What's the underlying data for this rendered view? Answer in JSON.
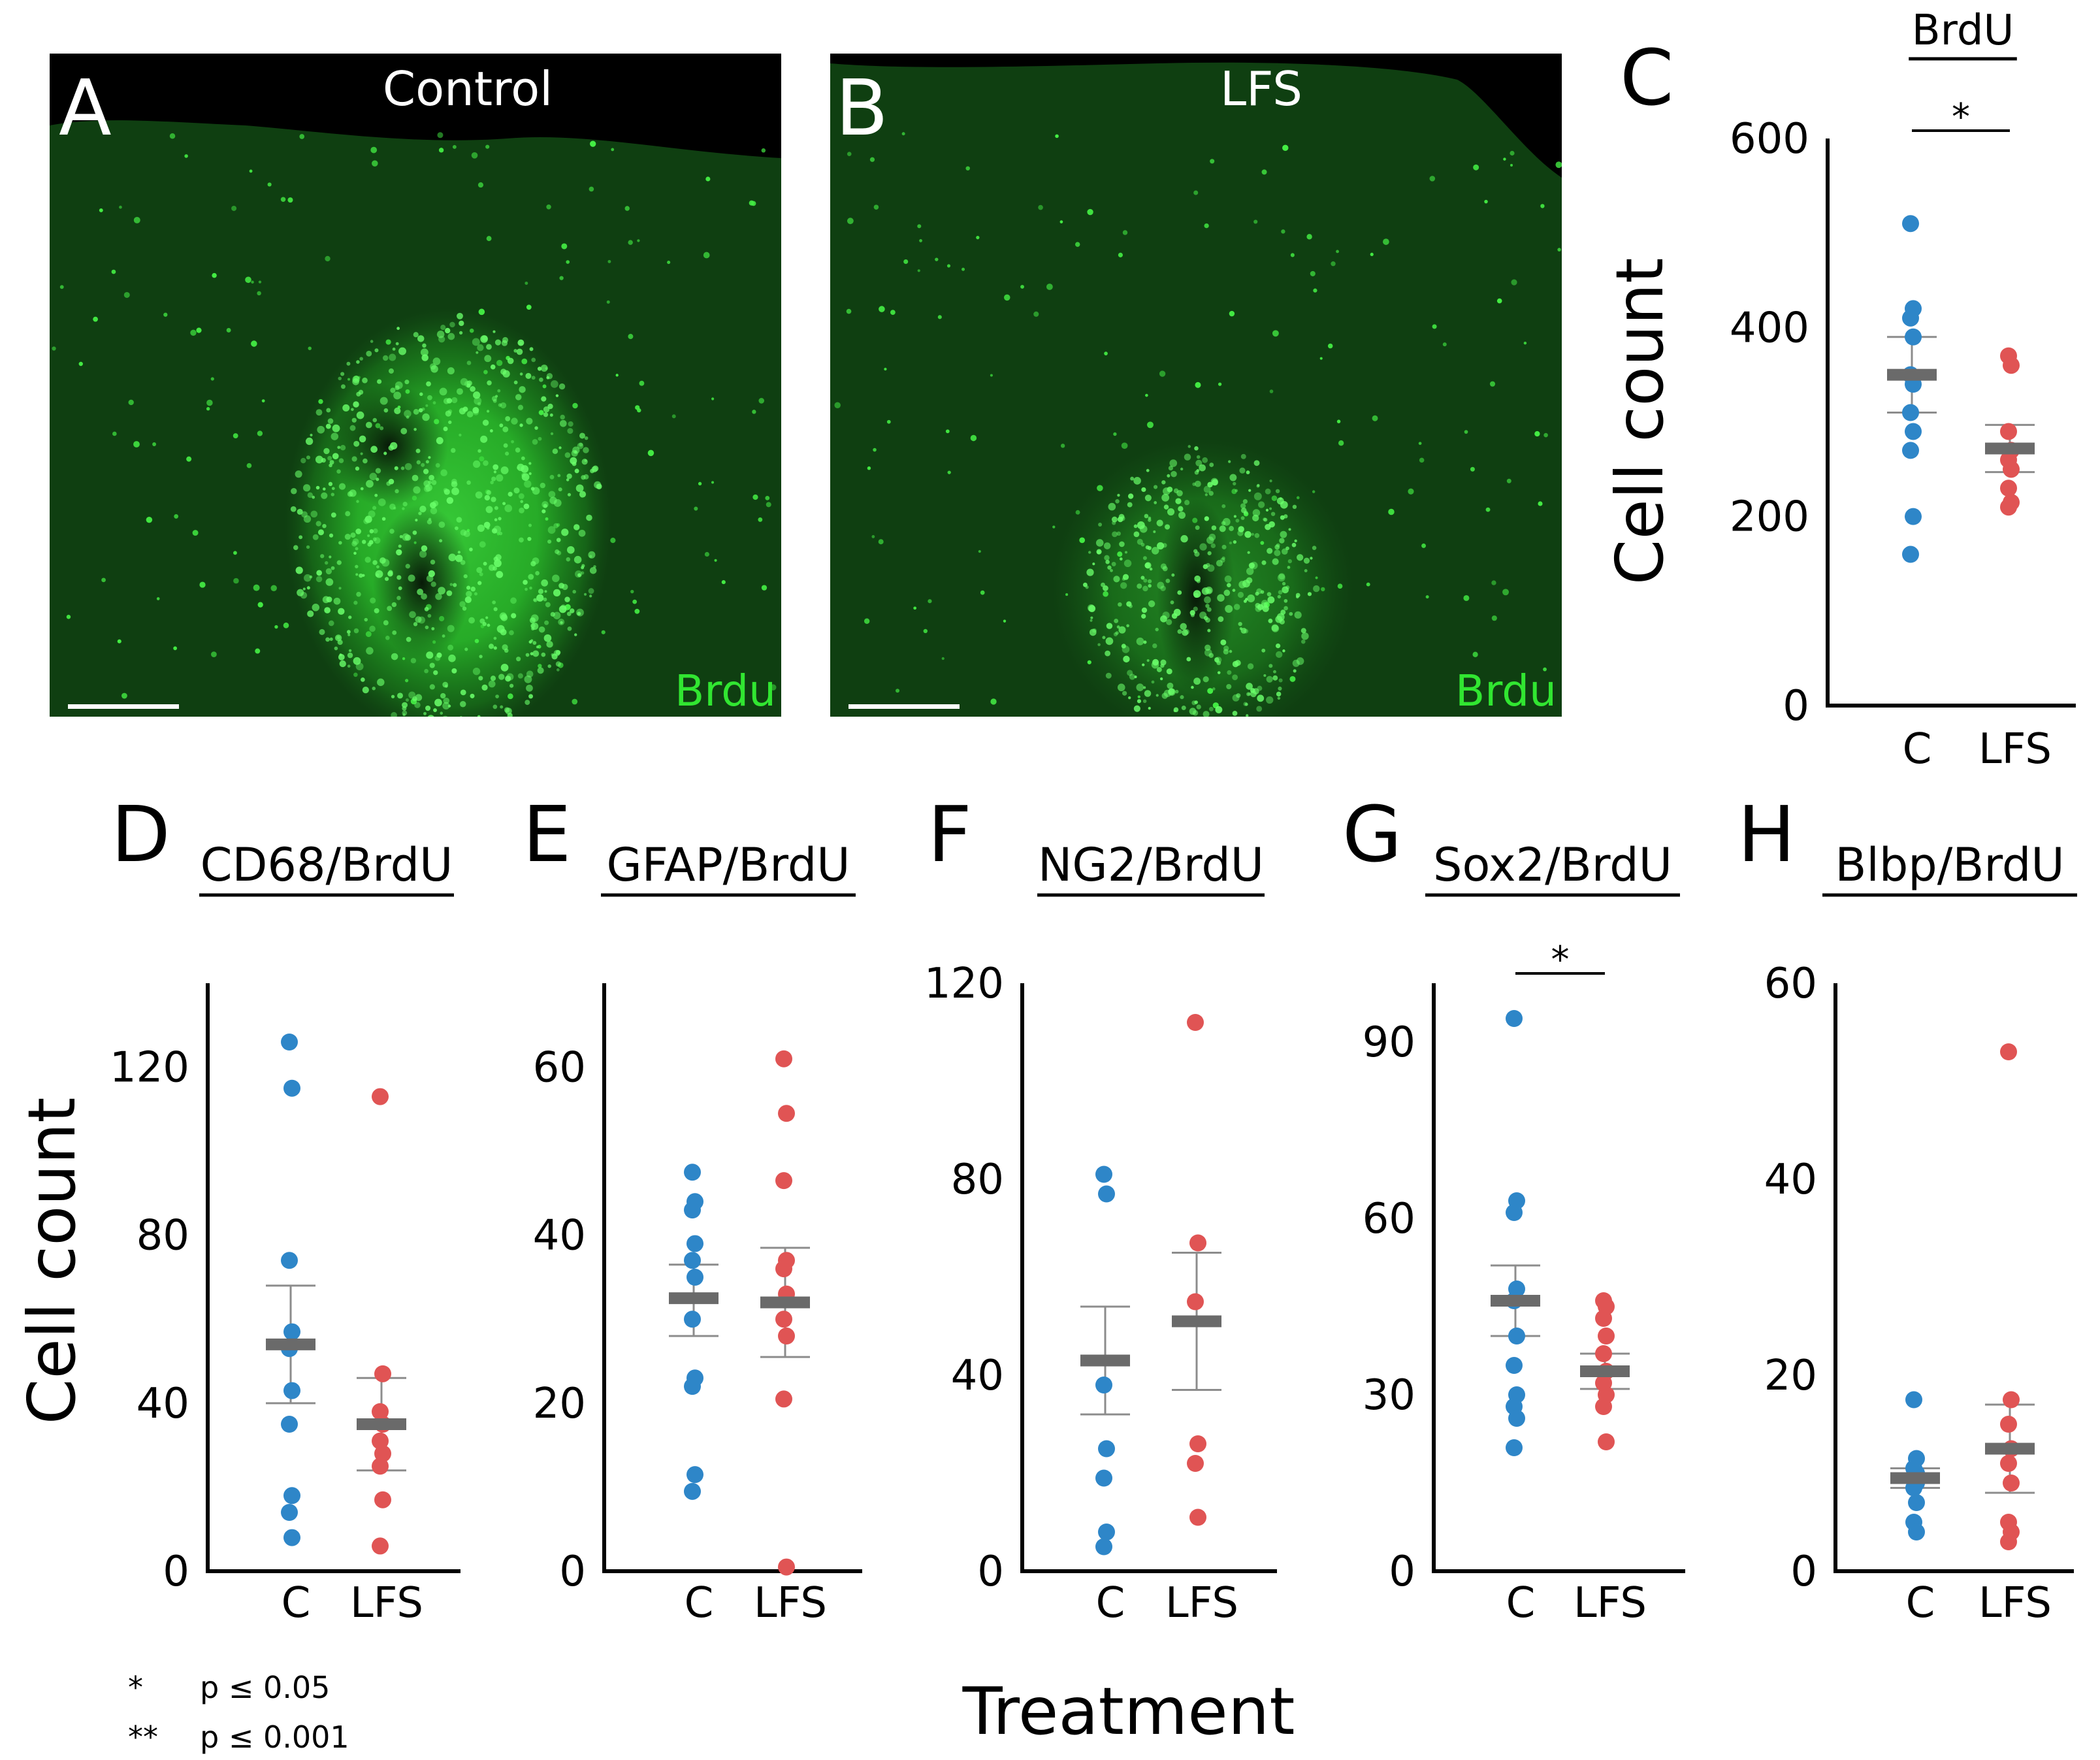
{
  "colors": {
    "control": "#2e86c8",
    "lfs": "#e05454",
    "mean_bar": "#6a6a6a",
    "sem_bar": "#8c8c8c",
    "stain": "#31e631"
  },
  "micrographs": [
    {
      "letter": "A",
      "title": "Control",
      "stain": "Brdu"
    },
    {
      "letter": "B",
      "title": "LFS",
      "stain": "Brdu"
    }
  ],
  "shared_ylabel": "Cell count",
  "shared_xlabel": "Treatment",
  "legend": [
    {
      "symbol": "*",
      "text": "p ≤ 0.05"
    },
    {
      "symbol": "**",
      "text": "p ≤ 0.001"
    }
  ],
  "chart_data": [
    {
      "panel": "C",
      "type": "scatter",
      "title": "BrdU",
      "ylabel": "Cell count",
      "xlabel": "",
      "categories": [
        "C",
        "LFS"
      ],
      "ylim": [
        0,
        600
      ],
      "yticks": [
        "0",
        "200",
        "400",
        "600"
      ],
      "significance": "*",
      "series": [
        {
          "name": "C",
          "values": [
            510,
            420,
            410,
            390,
            350,
            340,
            310,
            290,
            270,
            200,
            160
          ],
          "mean": 350,
          "sem_upper": 390,
          "sem_lower": 310
        },
        {
          "name": "LFS",
          "values": [
            370,
            360,
            290,
            270,
            260,
            250,
            230,
            215,
            210
          ],
          "mean": 272,
          "sem_upper": 297,
          "sem_lower": 247
        }
      ]
    },
    {
      "panel": "D",
      "type": "scatter",
      "title": "CD68/BrdU",
      "ylabel": "Cell count",
      "xlabel": "",
      "categories": [
        "C",
        "LFS"
      ],
      "ylim": [
        0,
        140
      ],
      "yticks": [
        "0",
        "40",
        "80",
        "120"
      ],
      "significance": "",
      "series": [
        {
          "name": "C",
          "values": [
            126,
            115,
            74,
            57,
            53,
            43,
            35,
            18,
            14,
            8
          ],
          "mean": 54,
          "sem_upper": 68,
          "sem_lower": 40
        },
        {
          "name": "LFS",
          "values": [
            113,
            47,
            38,
            35,
            31,
            28,
            25,
            17,
            6
          ],
          "mean": 35,
          "sem_upper": 46,
          "sem_lower": 24
        }
      ]
    },
    {
      "panel": "E",
      "type": "scatter",
      "title": "GFAP/BrdU",
      "ylabel": "",
      "xlabel": "",
      "categories": [
        "C",
        "LFS"
      ],
      "ylim": [
        0,
        70
      ],
      "yticks": [
        "0",
        "20",
        "40",
        "60"
      ],
      "significance": "",
      "series": [
        {
          "name": "C",
          "values": [
            47.5,
            44,
            43,
            39,
            37,
            35,
            30,
            23,
            22,
            11.5,
            9.5
          ],
          "mean": 32.5,
          "sem_upper": 36.5,
          "sem_lower": 28
        },
        {
          "name": "LFS",
          "values": [
            61,
            54.5,
            46.5,
            37,
            36,
            33,
            30,
            28,
            20.5,
            0.5
          ],
          "mean": 32,
          "sem_upper": 38.5,
          "sem_lower": 25.5
        }
      ]
    },
    {
      "panel": "F",
      "type": "scatter",
      "title": "NG2/BrdU",
      "ylabel": "",
      "xlabel": "",
      "categories": [
        "C",
        "LFS"
      ],
      "ylim": [
        0,
        120
      ],
      "yticks": [
        "0",
        "40",
        "80",
        "120"
      ],
      "significance": "",
      "series": [
        {
          "name": "C",
          "values": [
            81,
            77,
            38,
            25,
            19,
            8,
            5
          ],
          "mean": 43,
          "sem_upper": 54,
          "sem_lower": 32
        },
        {
          "name": "LFS",
          "values": [
            112,
            67,
            55,
            26,
            22,
            11
          ],
          "mean": 51,
          "sem_upper": 65,
          "sem_lower": 37
        }
      ]
    },
    {
      "panel": "G",
      "type": "scatter",
      "title": "Sox2/BrdU",
      "ylabel": "",
      "xlabel": "",
      "categories": [
        "C",
        "LFS"
      ],
      "ylim": [
        0,
        100
      ],
      "yticks": [
        "0",
        "30",
        "60",
        "90"
      ],
      "significance": "*",
      "series": [
        {
          "name": "C",
          "values": [
            94,
            63,
            61,
            48,
            46,
            40,
            35,
            30,
            28,
            26,
            21
          ],
          "mean": 46,
          "sem_upper": 52,
          "sem_lower": 40
        },
        {
          "name": "LFS",
          "values": [
            46,
            45,
            43,
            40,
            37,
            34,
            32,
            30,
            28,
            22
          ],
          "mean": 34,
          "sem_upper": 37,
          "sem_lower": 31
        }
      ]
    },
    {
      "panel": "H",
      "type": "scatter",
      "title": "Blbp/BrdU",
      "ylabel": "",
      "xlabel": "",
      "categories": [
        "C",
        "LFS"
      ],
      "ylim": [
        0,
        60
      ],
      "yticks": [
        "0",
        "20",
        "40",
        "60"
      ],
      "significance": "",
      "series": [
        {
          "name": "C",
          "values": [
            17.5,
            11.5,
            10.5,
            10,
            9.5,
            9,
            8.5,
            7,
            5,
            4
          ],
          "mean": 9.5,
          "sem_upper": 10.5,
          "sem_lower": 8.5
        },
        {
          "name": "LFS",
          "values": [
            53,
            17.5,
            15,
            12.5,
            11,
            9,
            5,
            4,
            3
          ],
          "mean": 12.5,
          "sem_upper": 17,
          "sem_lower": 8
        }
      ]
    }
  ]
}
